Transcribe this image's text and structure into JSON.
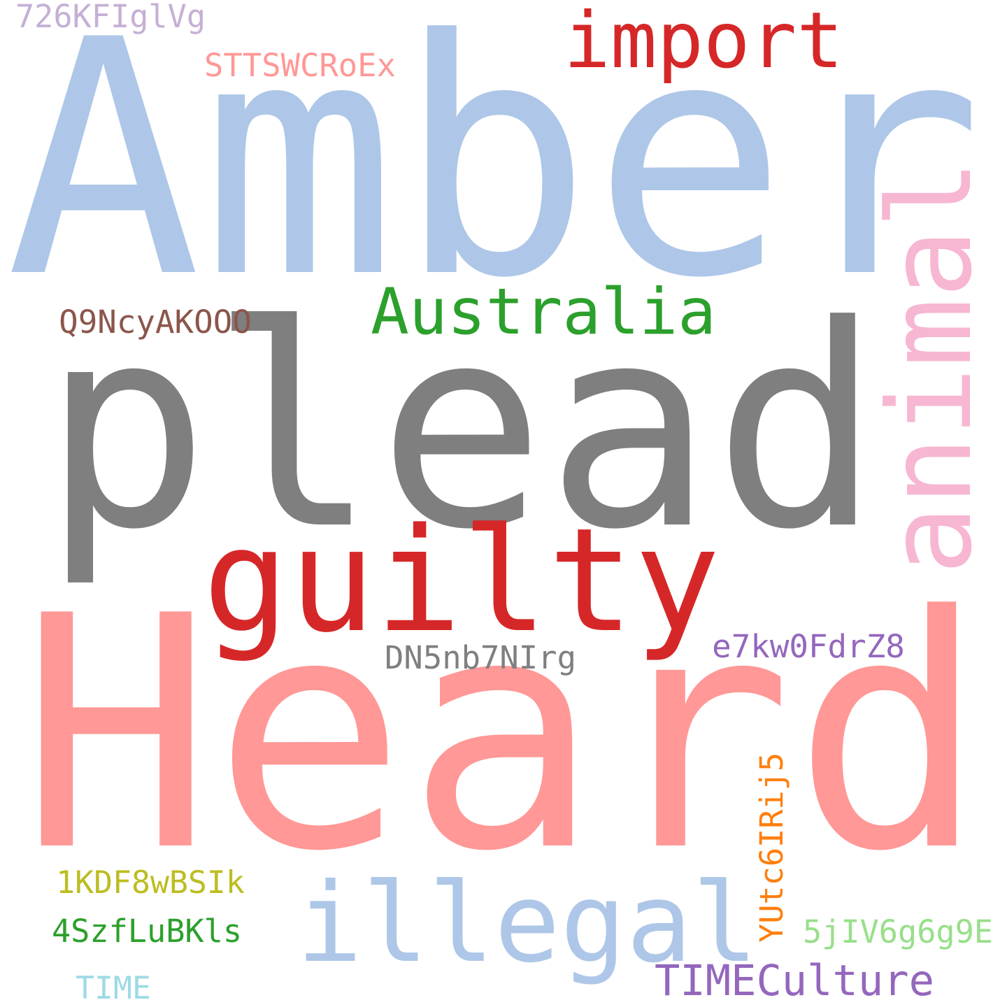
{
  "words": [
    {
      "key": "amber",
      "text": "Amber",
      "color": "#aec7e8",
      "vertical": false
    },
    {
      "key": "plead",
      "text": "plead",
      "color": "#7f7f7f",
      "vertical": false
    },
    {
      "key": "heard",
      "text": "Heard",
      "color": "#ff9896",
      "vertical": false
    },
    {
      "key": "guilty",
      "text": "guilty",
      "color": "#d62728",
      "vertical": false
    },
    {
      "key": "illegal",
      "text": "illegal",
      "color": "#aec7e8",
      "vertical": false
    },
    {
      "key": "animal",
      "text": "animal",
      "color": "#f7b6d2",
      "vertical": true
    },
    {
      "key": "import",
      "text": "import",
      "color": "#d62728",
      "vertical": false
    },
    {
      "key": "australia",
      "text": "Australia",
      "color": "#2ca02c",
      "vertical": false
    },
    {
      "key": "timeculture",
      "text": "TIMECulture",
      "color": "#9467bd",
      "vertical": false
    },
    {
      "key": "dn5",
      "text": "DN5nb7NIrg",
      "color": "#7f7f7f",
      "vertical": false
    },
    {
      "key": "e7k",
      "text": "e7kw0FdrZ8",
      "color": "#9467bd",
      "vertical": false
    },
    {
      "key": "q9n",
      "text": "Q9NcyAKOOO",
      "color": "#8c564b",
      "vertical": false
    },
    {
      "key": "stt",
      "text": "STTSWCRoEx",
      "color": "#ff9896",
      "vertical": false
    },
    {
      "key": "k726",
      "text": "726KFIglVg",
      "color": "#c5b0d5",
      "vertical": false
    },
    {
      "key": "yut",
      "text": "YUtc6IRij5",
      "color": "#ff7f0e",
      "vertical": true
    },
    {
      "key": "k1kd",
      "text": "1KDF8wBSIk",
      "color": "#bcbd22",
      "vertical": false
    },
    {
      "key": "k4sz",
      "text": "4SzfLuBKls",
      "color": "#2ca02c",
      "vertical": false
    },
    {
      "key": "k5ji",
      "text": "5jIV6g6g9E",
      "color": "#98df8a",
      "vertical": false
    },
    {
      "key": "time",
      "text": "TIME",
      "color": "#9edae5",
      "vertical": false
    }
  ]
}
